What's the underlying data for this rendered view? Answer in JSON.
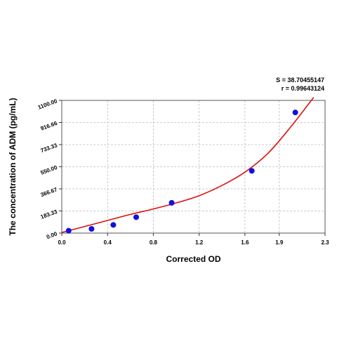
{
  "stats": {
    "s_text": "S = 38.70455147",
    "r_text": "r = 0.99643124"
  },
  "chart_data": {
    "type": "scatter",
    "xlabel": "Corrected OD",
    "ylabel": "The concentration of ADM (pg/mL)",
    "xlim": [
      0,
      2.3
    ],
    "ylim": [
      0,
      1100
    ],
    "xticks": [
      0,
      0.4,
      0.8,
      1.2,
      1.6,
      1.9,
      2.3
    ],
    "xtick_labels": [
      "0.0",
      "0.4",
      "0.8",
      "1.2",
      "1.6",
      "1.9",
      "2.3"
    ],
    "yticks": [
      0,
      183.33,
      366.67,
      550,
      733.33,
      916.66,
      1100
    ],
    "ytick_labels": [
      "0.00",
      "183.33",
      "366.67",
      "550.00",
      "733.33",
      "916.66",
      "1100.00"
    ],
    "grid": true,
    "points": [
      {
        "x": 0.06,
        "y": 20
      },
      {
        "x": 0.26,
        "y": 35
      },
      {
        "x": 0.45,
        "y": 68
      },
      {
        "x": 0.65,
        "y": 132
      },
      {
        "x": 0.96,
        "y": 251
      },
      {
        "x": 1.66,
        "y": 516
      },
      {
        "x": 2.04,
        "y": 1000
      }
    ],
    "fit_curve": {
      "x": [
        0.0,
        0.2,
        0.4,
        0.6,
        0.8,
        1.0,
        1.2,
        1.4,
        1.6,
        1.8,
        2.0,
        2.2
      ],
      "y": [
        5,
        55,
        105,
        155,
        200,
        250,
        310,
        395,
        505,
        660,
        880,
        1125
      ]
    },
    "colors": {
      "points": "#1010e0",
      "curve": "#dd1111",
      "grid": "#bdbdbd",
      "frame": "#555555"
    }
  }
}
